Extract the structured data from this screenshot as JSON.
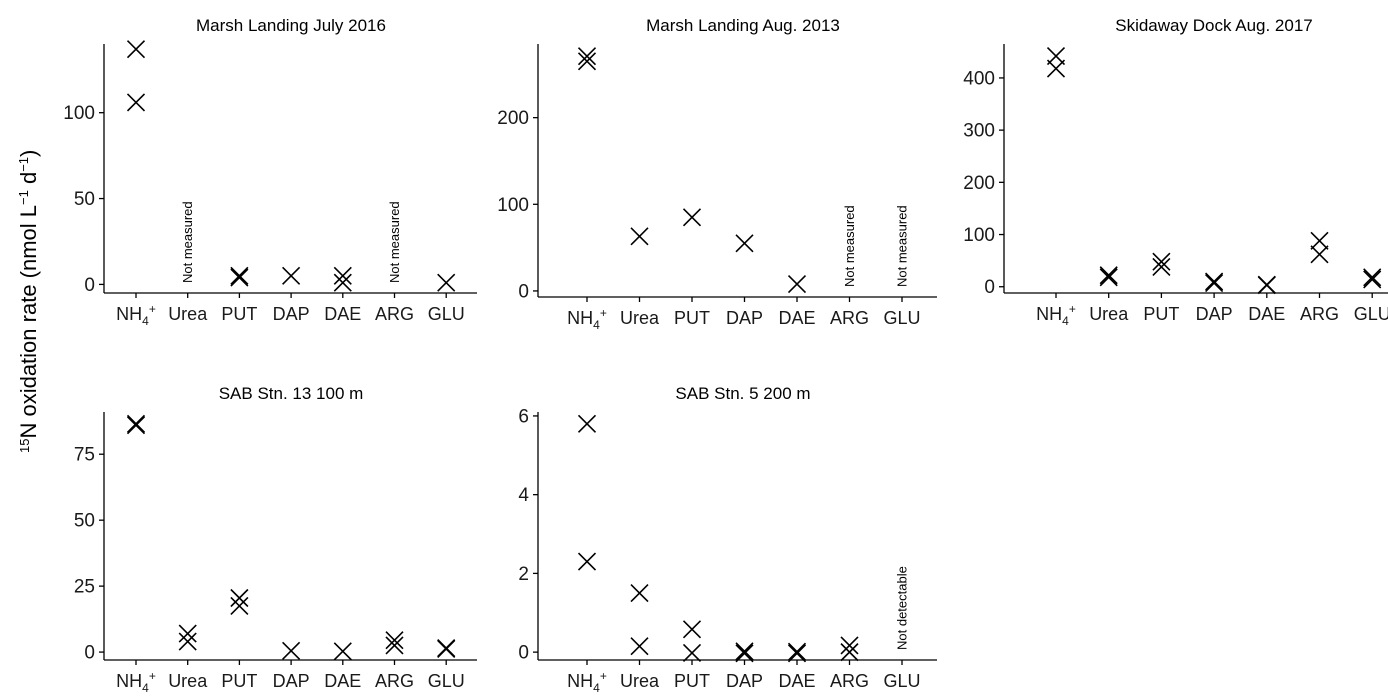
{
  "figure": {
    "ylabel_sup": "15",
    "ylabel_main": "N oxidation rate (nmol L",
    "ylabel_sup2": "−1",
    "ylabel_mid": " d",
    "ylabel_sup3": "−1",
    "ylabel_end": ")"
  },
  "chart_data": [
    {
      "type": "scatter",
      "title": "Marsh Landing July 2016",
      "categories": [
        "NH4+",
        "Urea",
        "PUT",
        "DAP",
        "DAE",
        "ARG",
        "GLU"
      ],
      "ylim": [
        -5,
        140
      ],
      "yticks": [
        0,
        50,
        100
      ],
      "points": [
        {
          "x": "NH4+",
          "y": 137
        },
        {
          "x": "NH4+",
          "y": 106
        },
        {
          "x": "PUT",
          "y": 4
        },
        {
          "x": "PUT",
          "y": 5
        },
        {
          "x": "DAP",
          "y": 5
        },
        {
          "x": "DAE",
          "y": 5
        },
        {
          "x": "DAE",
          "y": 1
        },
        {
          "x": "GLU",
          "y": 1
        }
      ],
      "annotations": [
        {
          "x": "Urea",
          "text": "Not measured"
        },
        {
          "x": "ARG",
          "text": "Not measured"
        }
      ]
    },
    {
      "type": "scatter",
      "title": "Marsh Landing Aug. 2013",
      "categories": [
        "NH4+",
        "Urea",
        "PUT",
        "DAP",
        "DAE",
        "ARG",
        "GLU"
      ],
      "ylim": [
        -7,
        285
      ],
      "yticks": [
        0,
        100,
        200
      ],
      "points": [
        {
          "x": "NH4+",
          "y": 271
        },
        {
          "x": "NH4+",
          "y": 265
        },
        {
          "x": "Urea",
          "y": 63
        },
        {
          "x": "PUT",
          "y": 85
        },
        {
          "x": "DAP",
          "y": 55
        },
        {
          "x": "DAE",
          "y": 8
        }
      ],
      "annotations": [
        {
          "x": "ARG",
          "text": "Not measured"
        },
        {
          "x": "GLU",
          "text": "Not measured"
        }
      ]
    },
    {
      "type": "scatter",
      "title": "Skidaway Dock Aug. 2017",
      "categories": [
        "NH4+",
        "Urea",
        "PUT",
        "DAP",
        "DAE",
        "ARG",
        "GLU"
      ],
      "ylim": [
        -12,
        465
      ],
      "yticks": [
        0,
        100,
        200,
        300,
        400
      ],
      "points": [
        {
          "x": "NH4+",
          "y": 442
        },
        {
          "x": "NH4+",
          "y": 418
        },
        {
          "x": "Urea",
          "y": 22
        },
        {
          "x": "Urea",
          "y": 18
        },
        {
          "x": "PUT",
          "y": 48
        },
        {
          "x": "PUT",
          "y": 38
        },
        {
          "x": "DAP",
          "y": 10
        },
        {
          "x": "DAP",
          "y": 7
        },
        {
          "x": "DAE",
          "y": 4
        },
        {
          "x": "DAE",
          "y": 3
        },
        {
          "x": "ARG",
          "y": 88
        },
        {
          "x": "ARG",
          "y": 62
        },
        {
          "x": "GLU",
          "y": 18
        },
        {
          "x": "GLU",
          "y": 14
        }
      ],
      "annotations": []
    },
    {
      "type": "scatter",
      "title": "SAB Stn. 13 100 m",
      "categories": [
        "NH4+",
        "Urea",
        "PUT",
        "DAP",
        "DAE",
        "ARG",
        "GLU"
      ],
      "ylim": [
        -3,
        91
      ],
      "yticks": [
        0,
        25,
        50,
        75
      ],
      "points": [
        {
          "x": "NH4+",
          "y": 86.5
        },
        {
          "x": "NH4+",
          "y": 86
        },
        {
          "x": "Urea",
          "y": 7
        },
        {
          "x": "Urea",
          "y": 4
        },
        {
          "x": "PUT",
          "y": 20.5
        },
        {
          "x": "PUT",
          "y": 17.5
        },
        {
          "x": "DAP",
          "y": 0.5
        },
        {
          "x": "DAE",
          "y": 0.3
        },
        {
          "x": "ARG",
          "y": 4.5
        },
        {
          "x": "ARG",
          "y": 2.5
        },
        {
          "x": "GLU",
          "y": 1.5
        },
        {
          "x": "GLU",
          "y": 1.2
        }
      ],
      "annotations": []
    },
    {
      "type": "scatter",
      "title": "SAB Stn. 5 200 m",
      "categories": [
        "NH4+",
        "Urea",
        "PUT",
        "DAP",
        "DAE",
        "ARG",
        "GLU"
      ],
      "ylim": [
        -0.2,
        6.1
      ],
      "yticks": [
        0,
        2,
        4,
        6
      ],
      "points": [
        {
          "x": "NH4+",
          "y": 5.8
        },
        {
          "x": "NH4+",
          "y": 2.3
        },
        {
          "x": "Urea",
          "y": 1.5
        },
        {
          "x": "Urea",
          "y": 0.15
        },
        {
          "x": "PUT",
          "y": 0.58
        },
        {
          "x": "PUT",
          "y": -0.02
        },
        {
          "x": "DAP",
          "y": 0.02
        },
        {
          "x": "DAP",
          "y": -0.03
        },
        {
          "x": "DAE",
          "y": 0.01
        },
        {
          "x": "DAE",
          "y": -0.03
        },
        {
          "x": "ARG",
          "y": 0.17
        },
        {
          "x": "ARG",
          "y": 0.0
        }
      ],
      "annotations": [
        {
          "x": "GLU",
          "text": "Not detectable"
        }
      ]
    }
  ]
}
